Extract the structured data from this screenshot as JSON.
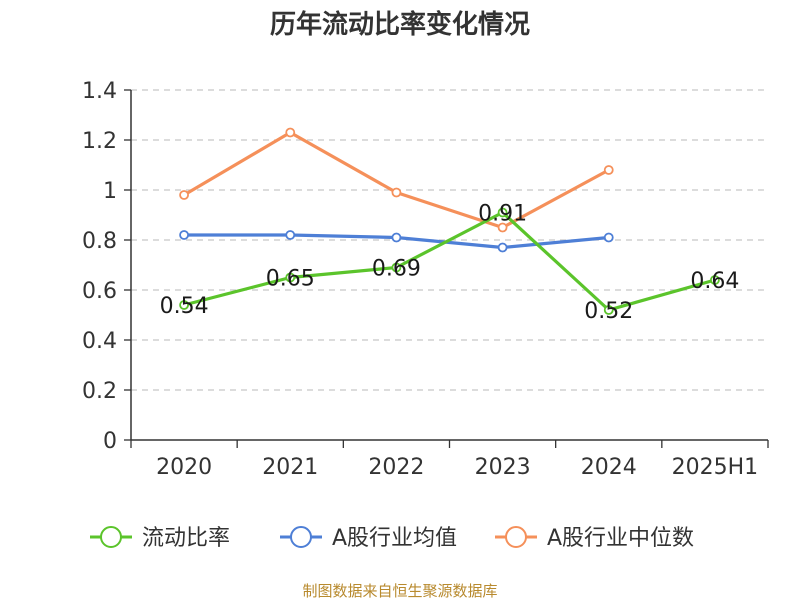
{
  "chart_data": {
    "type": "line",
    "title": "历年流动比率变化情况",
    "categories": [
      "2020",
      "2021",
      "2022",
      "2023",
      "2024",
      "2025H1"
    ],
    "y_ticks": [
      "0",
      "0.2",
      "0.4",
      "0.6",
      "0.8",
      "1",
      "1.2",
      "1.4"
    ],
    "ylim": [
      0,
      1.4
    ],
    "xlabel": "",
    "ylabel": "",
    "grid": true,
    "legend_position": "bottom",
    "series": [
      {
        "name": "流动比率",
        "color": "#5bc42b",
        "values": [
          0.54,
          0.65,
          0.69,
          0.91,
          0.52,
          0.64
        ],
        "labels": [
          "0.54",
          "0.65",
          "0.69",
          "0.91",
          "0.52",
          "0.64"
        ]
      },
      {
        "name": "A股行业均值",
        "color": "#4e7fd6",
        "values": [
          0.82,
          0.82,
          0.81,
          0.77,
          0.81,
          null
        ]
      },
      {
        "name": "A股行业中位数",
        "color": "#f5905a",
        "values": [
          0.98,
          1.23,
          0.99,
          0.85,
          1.08,
          null
        ]
      }
    ],
    "source": "制图数据来自恒生聚源数据库"
  }
}
